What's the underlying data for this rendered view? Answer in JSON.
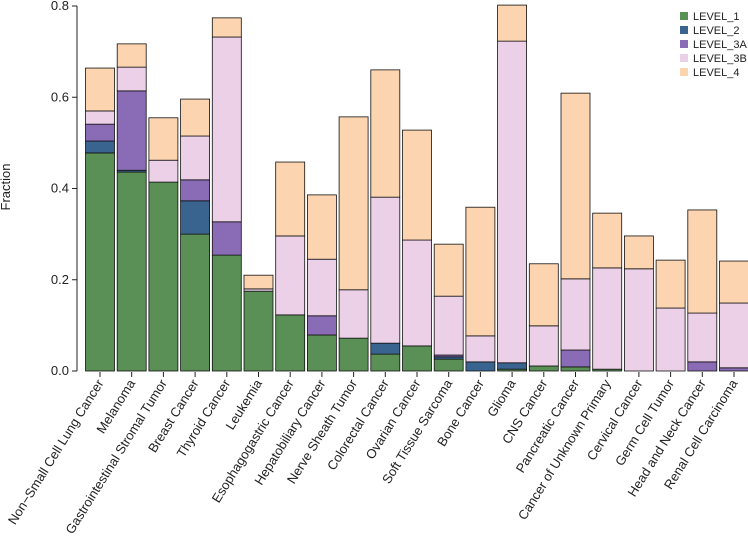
{
  "chart_data": {
    "type": "stacked_bar",
    "y_label": "Fraction",
    "categories": [
      "Non−Small Cell Lung Cancer",
      "Melanoma",
      "Gastrointestinal Stromal Tumor",
      "Breast Cancer",
      "Thyroid Cancer",
      "Leukemia",
      "Esophagogastric Cancer",
      "Hepatobiliary Cancer",
      "Nerve Sheath Tumor",
      "Colorectal Cancer",
      "Ovarian Cancer",
      "Soft Tissue Sarcoma",
      "Bone Cancer",
      "Glioma",
      "CNS Cancer",
      "Pancreatic Cancer",
      "Cancer of Unknown Primary",
      "Cervical Cancer",
      "Germ Cell Tumor",
      "Head and Neck Cancer",
      "Renal Cell Carcinoma"
    ],
    "series": [
      {
        "name": "LEVEL_1",
        "color": "#5a8f55",
        "values": [
          0.478,
          0.436,
          0.414,
          0.3,
          0.254,
          0.175,
          0.123,
          0.079,
          0.072,
          0.037,
          0.055,
          0.026,
          0,
          0.004,
          0.011,
          0.009,
          0.004,
          0,
          0,
          0,
          0
        ]
      },
      {
        "name": "LEVEL_2",
        "color": "#3a6490",
        "values": [
          0.026,
          0.004,
          0,
          0.073,
          0,
          0,
          0,
          0,
          0,
          0.024,
          0,
          0.005,
          0.02,
          0.014,
          0,
          0,
          0,
          0,
          0,
          0,
          0
        ]
      },
      {
        "name": "LEVEL_3A",
        "color": "#8a6bb5",
        "values": [
          0.037,
          0.174,
          0,
          0.046,
          0.073,
          0,
          0,
          0.042,
          0,
          0,
          0,
          0.004,
          0,
          0,
          0,
          0.037,
          0,
          0,
          0,
          0.02,
          0.007
        ]
      },
      {
        "name": "LEVEL_3B",
        "color": "#ebd0e8",
        "values": [
          0.029,
          0.052,
          0.048,
          0.096,
          0.405,
          0.005,
          0.173,
          0.124,
          0.106,
          0.32,
          0.232,
          0.129,
          0.057,
          0.705,
          0.088,
          0.156,
          0.222,
          0.224,
          0.138,
          0.107,
          0.142
        ]
      },
      {
        "name": "LEVEL_4",
        "color": "#fcd4b0",
        "values": [
          0.094,
          0.051,
          0.093,
          0.081,
          0.042,
          0.03,
          0.162,
          0.141,
          0.379,
          0.279,
          0.241,
          0.114,
          0.282,
          0.079,
          0.136,
          0.407,
          0.12,
          0.072,
          0.105,
          0.226,
          0.092
        ]
      }
    ],
    "ylim": [
      0,
      0.8
    ],
    "yticks": [
      {
        "value": 0,
        "label": "0.0"
      },
      0.2,
      0.4,
      0.6,
      0.8
    ],
    "legend": "top-right"
  }
}
